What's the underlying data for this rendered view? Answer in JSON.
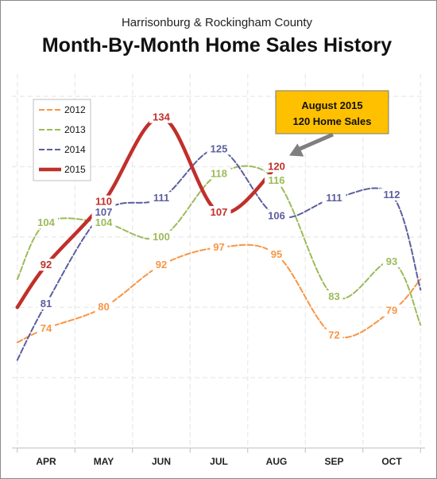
{
  "chart_data": {
    "type": "line",
    "subtitle": "Harrisonburg & Rockingham County",
    "title": "Month-By-Month Home Sales History",
    "categories": [
      "APR",
      "MAY",
      "JUN",
      "JUL",
      "AUG",
      "SEP",
      "OCT"
    ],
    "series": [
      {
        "name": "2012",
        "color": "#F79646",
        "dash": true,
        "points": [
          [
            -0.5,
            70
          ],
          [
            0,
            74
          ],
          [
            1,
            80
          ],
          [
            2,
            92
          ],
          [
            3,
            97
          ],
          [
            4,
            95
          ],
          [
            5,
            72
          ],
          [
            6,
            79
          ],
          [
            6.5,
            88
          ]
        ]
      },
      {
        "name": "2013",
        "color": "#9BBB59",
        "dash": true,
        "points": [
          [
            -0.5,
            88
          ],
          [
            0,
            104
          ],
          [
            1,
            104
          ],
          [
            2,
            100
          ],
          [
            3,
            118
          ],
          [
            4,
            116
          ],
          [
            5,
            83
          ],
          [
            6,
            93
          ],
          [
            6.5,
            75
          ]
        ]
      },
      {
        "name": "2014",
        "color": "#5B5E9E",
        "dash": true,
        "points": [
          [
            -0.5,
            65
          ],
          [
            0,
            81
          ],
          [
            1,
            107
          ],
          [
            2,
            111
          ],
          [
            3,
            125
          ],
          [
            4,
            106
          ],
          [
            5,
            111
          ],
          [
            6,
            112
          ],
          [
            6.5,
            85
          ]
        ]
      },
      {
        "name": "2015",
        "color": "#C0302B",
        "dash": false,
        "points": [
          [
            -0.5,
            80
          ],
          [
            0,
            92
          ],
          [
            1,
            110
          ],
          [
            2,
            134
          ],
          [
            3,
            107
          ],
          [
            4,
            120
          ]
        ]
      }
    ],
    "labels": [
      {
        "series": 0,
        "x": 0,
        "text": "74"
      },
      {
        "series": 0,
        "x": 1,
        "text": "80"
      },
      {
        "series": 0,
        "x": 2,
        "text": "92"
      },
      {
        "series": 0,
        "x": 3,
        "text": "97"
      },
      {
        "series": 0,
        "x": 4,
        "text": "95"
      },
      {
        "series": 0,
        "x": 5,
        "text": "72"
      },
      {
        "series": 0,
        "x": 6,
        "text": "79"
      },
      {
        "series": 1,
        "x": 0,
        "text": "104"
      },
      {
        "series": 1,
        "x": 1,
        "text": "104"
      },
      {
        "series": 1,
        "x": 2,
        "text": "100"
      },
      {
        "series": 1,
        "x": 3,
        "text": "118"
      },
      {
        "series": 1,
        "x": 4,
        "text": "116"
      },
      {
        "series": 1,
        "x": 5,
        "text": "83"
      },
      {
        "series": 1,
        "x": 6,
        "text": "93"
      },
      {
        "series": 2,
        "x": 0,
        "text": "81"
      },
      {
        "series": 2,
        "x": 1,
        "text": "107"
      },
      {
        "series": 2,
        "x": 2,
        "text": "111"
      },
      {
        "series": 2,
        "x": 3,
        "text": "125"
      },
      {
        "series": 2,
        "x": 4,
        "text": "106"
      },
      {
        "series": 2,
        "x": 5,
        "text": "111"
      },
      {
        "series": 2,
        "x": 6,
        "text": "112"
      },
      {
        "series": 3,
        "x": 0,
        "text": "92"
      },
      {
        "series": 3,
        "x": 1,
        "text": "110"
      },
      {
        "series": 3,
        "x": 2,
        "text": "134"
      },
      {
        "series": 3,
        "x": 3,
        "text": "107"
      },
      {
        "series": 3,
        "x": 4,
        "text": "120"
      }
    ],
    "ylim": [
      40,
      145
    ],
    "grid": true,
    "legend_position": "top-left",
    "callout": {
      "line1": "August 2015",
      "line2": "120 Home Sales",
      "fill": "#FFC000",
      "points_to": {
        "series": 3,
        "x": 4
      }
    }
  }
}
